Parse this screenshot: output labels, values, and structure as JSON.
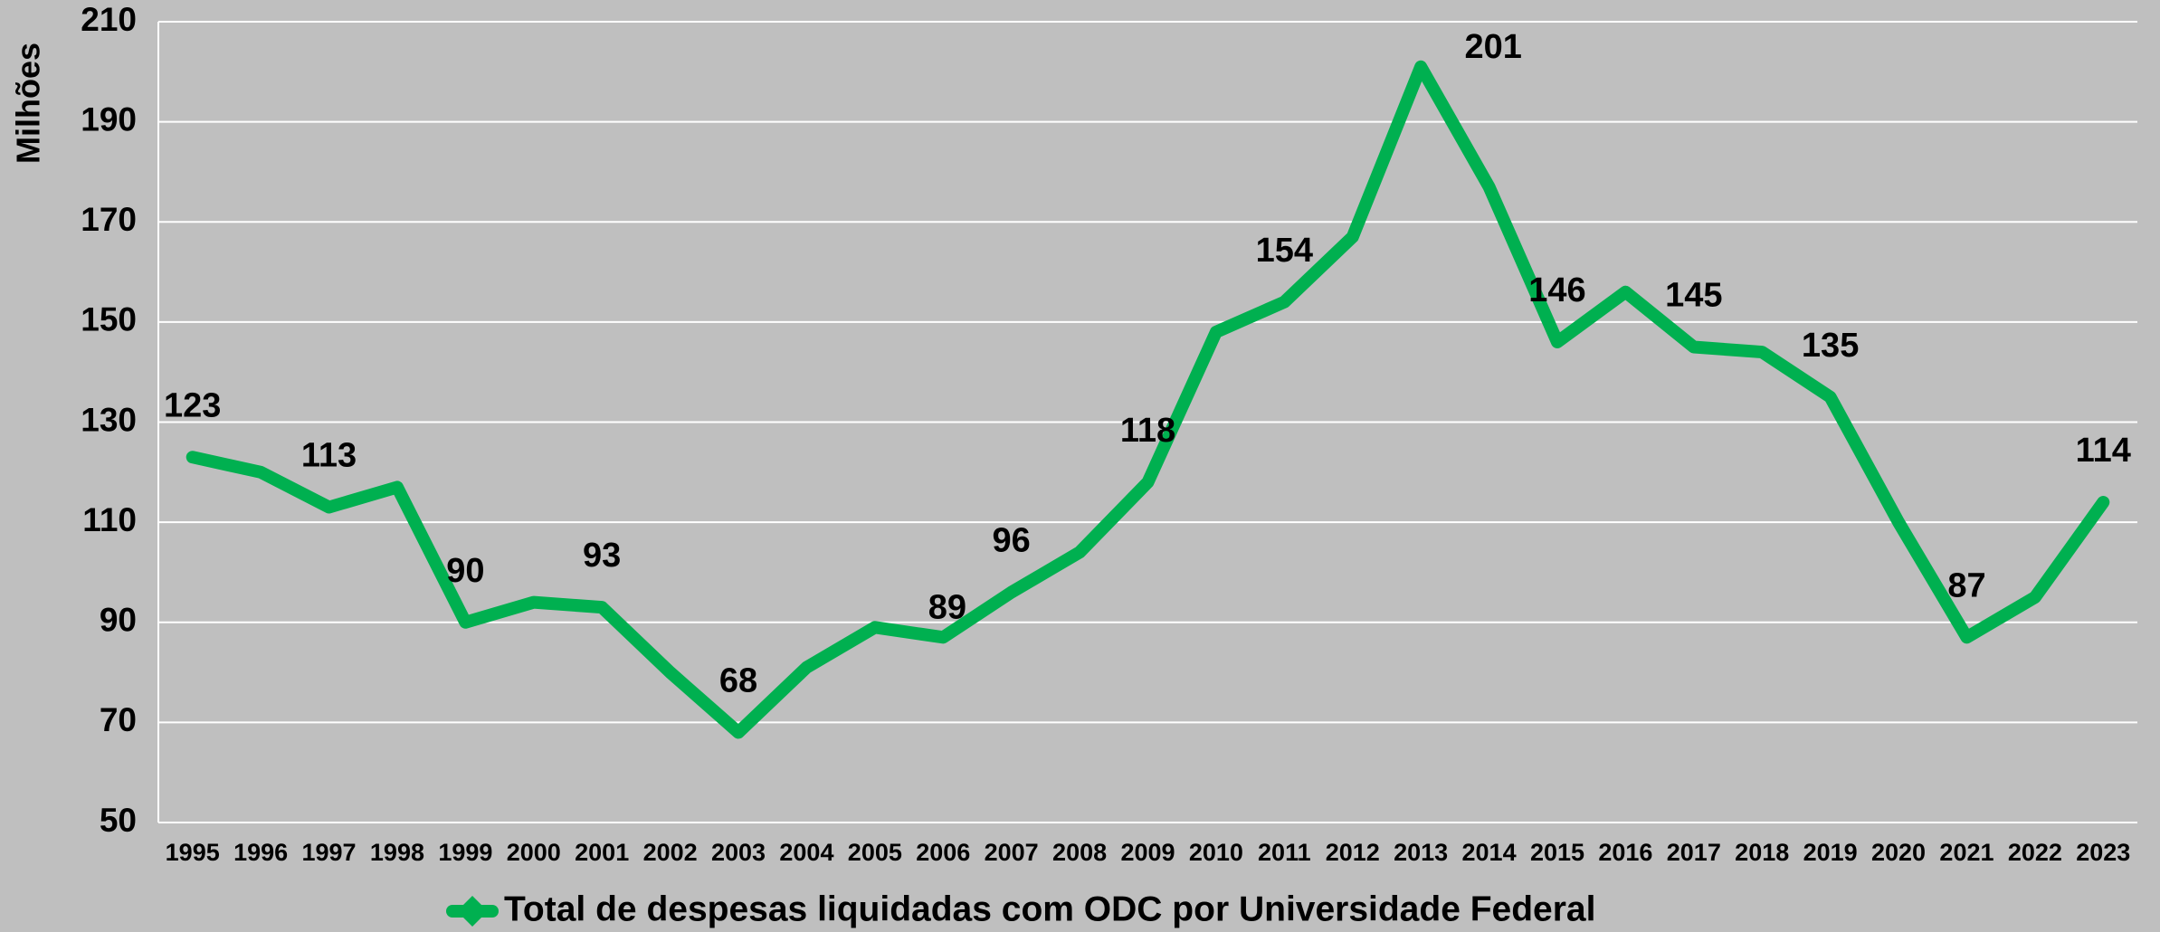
{
  "chart_data": {
    "type": "line",
    "y_axis_label": "Milhões",
    "categories": [
      "1995",
      "1996",
      "1997",
      "1998",
      "1999",
      "2000",
      "2001",
      "2002",
      "2003",
      "2004",
      "2005",
      "2006",
      "2007",
      "2008",
      "2009",
      "2010",
      "2011",
      "2012",
      "2013",
      "2014",
      "2015",
      "2016",
      "2017",
      "2018",
      "2019",
      "2020",
      "2021",
      "2022",
      "2023"
    ],
    "series": [
      {
        "name": "Total de despesas liquidadas com ODC por Universidade Federal",
        "color": "#00b050",
        "values": [
          123,
          120,
          113,
          117,
          90,
          94,
          93,
          80,
          68,
          81,
          89,
          87,
          96,
          104,
          118,
          148,
          154,
          167,
          201,
          177,
          146,
          156,
          145,
          144,
          135,
          110,
          87,
          95,
          114
        ],
        "value_labels": [
          "123",
          null,
          "113",
          null,
          "90",
          null,
          "93",
          null,
          "68",
          null,
          "89",
          null,
          "96",
          null,
          "118",
          null,
          "154",
          null,
          "201",
          null,
          "146",
          null,
          "145",
          null,
          "135",
          null,
          "87",
          null,
          "114"
        ]
      }
    ],
    "ylim": [
      50,
      210
    ],
    "yticks": [
      50,
      70,
      90,
      110,
      130,
      150,
      170,
      190,
      210
    ],
    "grid": true,
    "legend": "bottom"
  }
}
